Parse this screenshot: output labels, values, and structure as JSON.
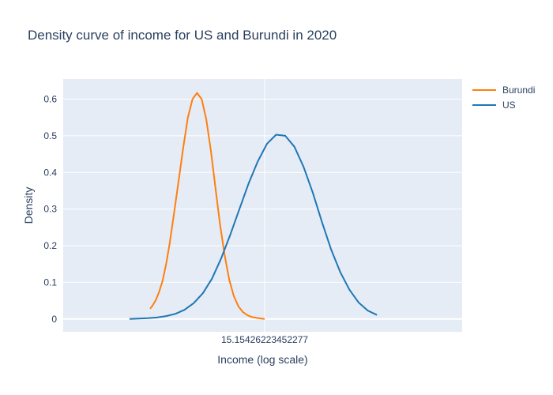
{
  "chart_data": {
    "type": "line",
    "title": "Density curve of income for US and Burundi in 2020",
    "xlabel": "Income (log scale)",
    "ylabel": "Density",
    "x_tick_labels": [
      "15.15426223452277"
    ],
    "y_ticks": [
      0,
      0.1,
      0.2,
      0.3,
      0.4,
      0.5,
      0.6
    ],
    "y_tick_labels": [
      "0",
      "0.1",
      "0.2",
      "0.3",
      "0.4",
      "0.5",
      "0.6"
    ],
    "ylim": [
      -0.035,
      0.655
    ],
    "grid": true,
    "legend_position": "top-right",
    "background_color": "#e5ecf6",
    "series": [
      {
        "name": "Burundi",
        "color": "#ff7f0e",
        "x": [
          0.0,
          0.02,
          0.05,
          0.08,
          0.11,
          0.14,
          0.17,
          0.21,
          0.25,
          0.29,
          0.33,
          0.37,
          0.41,
          0.45,
          0.49,
          0.53,
          0.57,
          0.61,
          0.65,
          0.69,
          0.73,
          0.77,
          0.81,
          0.85,
          0.89,
          0.93,
          0.97,
          1.0
        ],
        "y": [
          0.028,
          0.036,
          0.052,
          0.075,
          0.105,
          0.15,
          0.205,
          0.29,
          0.38,
          0.47,
          0.55,
          0.6,
          0.617,
          0.6,
          0.545,
          0.46,
          0.36,
          0.26,
          0.175,
          0.108,
          0.063,
          0.035,
          0.019,
          0.01,
          0.005,
          0.003,
          0.001,
          0.0
        ]
      },
      {
        "name": "US",
        "color": "#1f77b4",
        "x": [
          -0.18,
          -0.1,
          -0.02,
          0.06,
          0.14,
          0.22,
          0.3,
          0.38,
          0.46,
          0.54,
          0.62,
          0.7,
          0.78,
          0.86,
          0.94,
          1.02,
          1.1,
          1.18,
          1.26,
          1.34,
          1.42,
          1.5,
          1.58,
          1.66,
          1.74,
          1.82,
          1.9,
          1.98
        ],
        "y": [
          0.0,
          0.001,
          0.002,
          0.004,
          0.008,
          0.014,
          0.025,
          0.043,
          0.07,
          0.11,
          0.165,
          0.23,
          0.3,
          0.37,
          0.43,
          0.478,
          0.503,
          0.5,
          0.47,
          0.415,
          0.345,
          0.265,
          0.19,
          0.128,
          0.08,
          0.045,
          0.023,
          0.011
        ]
      }
    ]
  }
}
